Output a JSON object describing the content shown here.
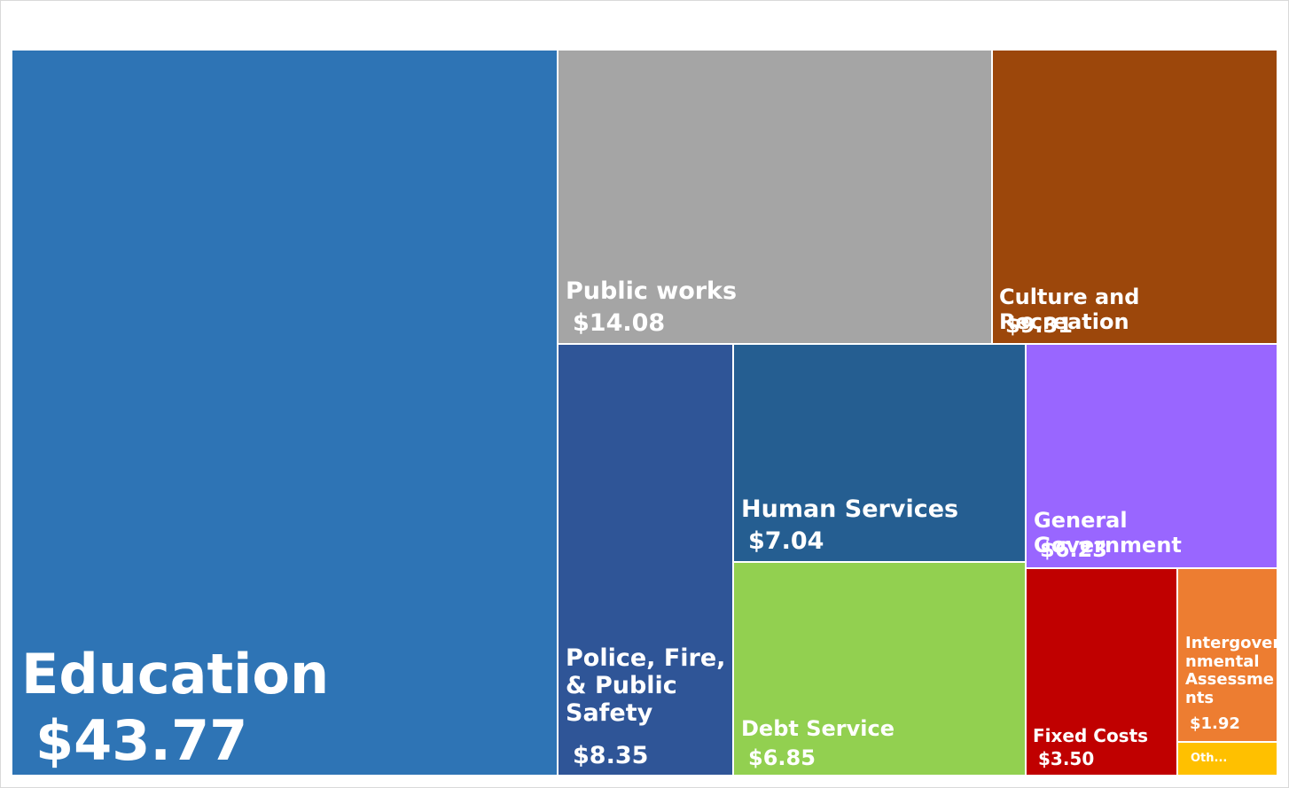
{
  "chart_data": {
    "type": "treemap",
    "title": "",
    "items": [
      {
        "name": "Education",
        "value": 43.77,
        "value_label": "$43.77",
        "color": "#2e74b5"
      },
      {
        "name": "Public works",
        "value": 14.08,
        "value_label": "$14.08",
        "color": "#a5a5a5"
      },
      {
        "name": "Culture and Recreation",
        "value": 9.31,
        "value_label": "$9.31",
        "color": "#9c470b"
      },
      {
        "name": "Police, Fire, & Public Safety",
        "value": 8.35,
        "value_label": "$8.35",
        "color": "#2f5597"
      },
      {
        "name": "Human Services",
        "value": 7.04,
        "value_label": "$7.04",
        "color": "#255e91"
      },
      {
        "name": "Debt Service",
        "value": 6.85,
        "value_label": "$6.85",
        "color": "#92d050"
      },
      {
        "name": "General Government",
        "value": 6.23,
        "value_label": "$6.23",
        "color": "#9966ff"
      },
      {
        "name": "Fixed Costs",
        "value": 3.5,
        "value_label": "$3.50",
        "color": "#c00000"
      },
      {
        "name": "Intergovernmental Assessments",
        "value": 1.92,
        "value_label": "$1.92",
        "color": "#ed7d31"
      },
      {
        "name": "Oth...",
        "value": null,
        "value_label": "",
        "color": "#ffc000"
      }
    ]
  }
}
